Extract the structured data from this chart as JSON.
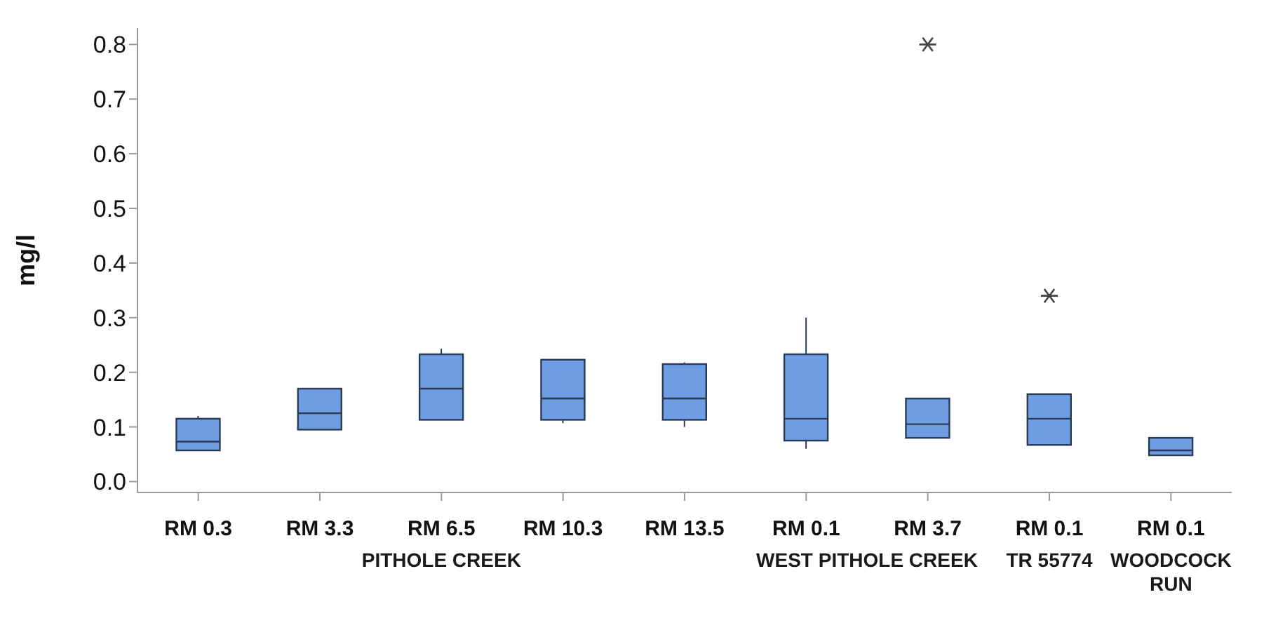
{
  "chart_data": {
    "type": "box",
    "ylabel": "mg/l",
    "color": "#6e9de3",
    "categories": [
      "RM 0.3",
      "RM 3.3",
      "RM 6.5",
      "RM 10.3",
      "RM 13.5",
      "RM 0.1",
      "RM 3.7",
      "RM 0.1",
      "RM 0.1"
    ],
    "annotations": [
      "PITHOLE CREEK",
      "WEST PITHOLE CREEK",
      "TR 55774",
      "WOODCOCK RUN"
    ],
    "ylim": [
      -0.02,
      0.83
    ],
    "yticks": [
      {
        "value": 0,
        "label": "0.0"
      },
      0.1,
      0.2,
      0.3,
      0.4,
      0.5,
      0.6,
      0.7,
      0.8
    ],
    "marker": "star",
    "boxes": [
      {
        "low": 0.057,
        "q1": 0.057,
        "median": 0.073,
        "q3": 0.115,
        "high": 0.12
      },
      {
        "low": 0.095,
        "q1": 0.095,
        "median": 0.125,
        "q3": 0.17,
        "high": 0.17
      },
      {
        "low": 0.113,
        "q1": 0.113,
        "median": 0.17,
        "q3": 0.233,
        "high": 0.243
      },
      {
        "low": 0.107,
        "q1": 0.113,
        "median": 0.152,
        "q3": 0.223,
        "high": 0.223
      },
      {
        "low": 0.1,
        "q1": 0.113,
        "median": 0.152,
        "q3": 0.215,
        "high": 0.218
      },
      {
        "low": 0.06,
        "q1": 0.075,
        "median": 0.115,
        "q3": 0.233,
        "high": 0.3
      },
      {
        "low": 0.08,
        "q1": 0.08,
        "median": 0.105,
        "q3": 0.152,
        "high": 0.152,
        "outliers": [
          0.8
        ]
      },
      {
        "low": 0.067,
        "q1": 0.067,
        "median": 0.115,
        "q3": 0.16,
        "high": 0.16,
        "outliers": [
          0.34
        ]
      },
      {
        "low": 0.048,
        "q1": 0.048,
        "median": 0.057,
        "q3": 0.08,
        "high": 0.08
      }
    ]
  }
}
